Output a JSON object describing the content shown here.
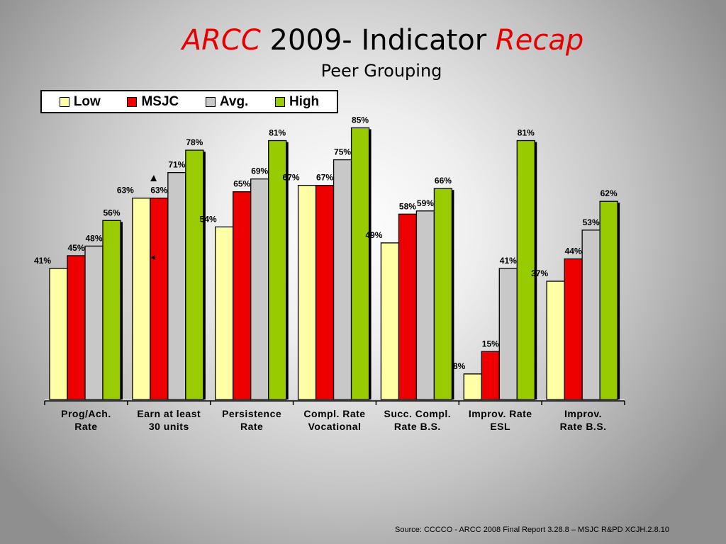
{
  "slide": {
    "title_part1": "ARCC",
    "title_part2": " 2009- Indicator ",
    "title_part3": "Recap",
    "subtitle": "Peer Grouping",
    "source": "Source: CCCCO - ARCC 2008 Final Report 3.28.8 – MSJC R&PD XCJH.2.8.10"
  },
  "chart_data": {
    "type": "bar",
    "categories": [
      [
        "Prog/Ach.",
        "Rate"
      ],
      [
        "Earn at least",
        "30 units"
      ],
      [
        "Persistence",
        "Rate"
      ],
      [
        "Compl. Rate",
        "Vocational"
      ],
      [
        "Succ. Compl.",
        "Rate B.S."
      ],
      [
        "Improv. Rate",
        "ESL"
      ],
      [
        "Improv.",
        "Rate B.S."
      ]
    ],
    "series": [
      {
        "name": "Low",
        "color": "#ffffa6",
        "values": [
          41,
          63,
          54,
          67,
          49,
          8,
          37
        ],
        "labels": [
          "41%",
          "63%",
          "54%",
          "67%",
          "49%",
          "8%",
          "37%"
        ]
      },
      {
        "name": "MSJC",
        "color": "#ee0000",
        "values": [
          45,
          63,
          65,
          67,
          58,
          15,
          44
        ],
        "labels": [
          "45%",
          "63%",
          "65%",
          "67%",
          "58%",
          "15%",
          "44%"
        ]
      },
      {
        "name": "Avg.",
        "color": "#c8c8c8",
        "values": [
          48,
          71,
          69,
          75,
          59,
          41,
          53
        ],
        "labels": [
          "48%",
          "71%",
          "69%",
          "75%",
          "59%",
          "41%",
          "53%"
        ]
      },
      {
        "name": "High",
        "color": "#99cc00",
        "values": [
          56,
          78,
          81,
          85,
          66,
          81,
          62
        ],
        "labels": [
          "56%",
          "78%",
          "81%",
          "85%",
          "66%",
          "81%",
          "62%"
        ]
      }
    ],
    "ylim": [
      0,
      85
    ],
    "legend": "top-left",
    "grid": false
  }
}
